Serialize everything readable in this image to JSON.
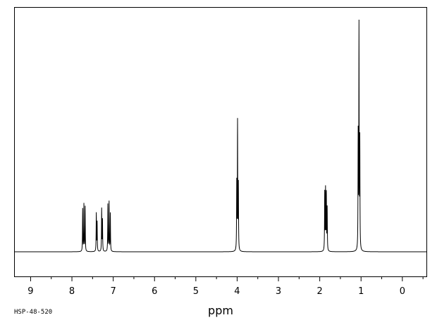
{
  "chart_data": {
    "type": "line",
    "title": "",
    "xlabel": "ppm",
    "ylabel": "",
    "x_reversed": true,
    "xlim": [
      9.4,
      -0.6
    ],
    "ylim": [
      0,
      1
    ],
    "ticks": [
      9,
      8,
      7,
      6,
      5,
      4,
      3,
      2,
      1,
      0
    ],
    "tick_labels": [
      "9",
      "8",
      "7",
      "6",
      "5",
      "4",
      "3",
      "2",
      "1",
      "0"
    ],
    "minor_tick_step": 0.5,
    "grid": false,
    "baseline_level": 0,
    "peaks": [
      {
        "shift": 7.74,
        "intensity": 0.19
      },
      {
        "shift": 7.71,
        "intensity": 0.21
      },
      {
        "shift": 7.68,
        "intensity": 0.2
      },
      {
        "shift": 7.41,
        "intensity": 0.17
      },
      {
        "shift": 7.39,
        "intensity": 0.13
      },
      {
        "shift": 7.28,
        "intensity": 0.19
      },
      {
        "shift": 7.26,
        "intensity": 0.14
      },
      {
        "shift": 7.13,
        "intensity": 0.21
      },
      {
        "shift": 7.1,
        "intensity": 0.22
      },
      {
        "shift": 7.07,
        "intensity": 0.17
      },
      {
        "shift": 4.01,
        "intensity": 0.3
      },
      {
        "shift": 3.99,
        "intensity": 0.57
      },
      {
        "shift": 3.97,
        "intensity": 0.29
      },
      {
        "shift": 1.88,
        "intensity": 0.26
      },
      {
        "shift": 1.86,
        "intensity": 0.27
      },
      {
        "shift": 1.84,
        "intensity": 0.25
      },
      {
        "shift": 1.82,
        "intensity": 0.19
      },
      {
        "shift": 1.07,
        "intensity": 0.51
      },
      {
        "shift": 1.05,
        "intensity": 0.99
      },
      {
        "shift": 1.03,
        "intensity": 0.48
      }
    ]
  },
  "footer": {
    "code": "HSP-48-520"
  },
  "colors": {
    "line": "#000000",
    "background": "#ffffff"
  }
}
